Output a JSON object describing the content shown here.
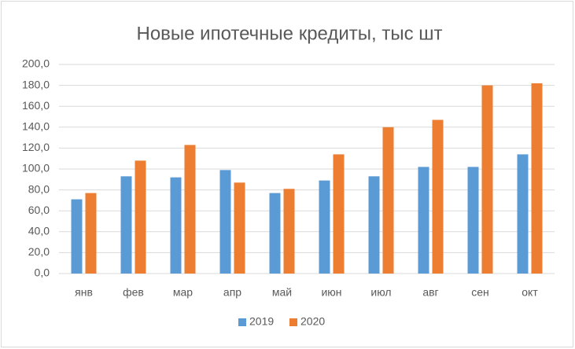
{
  "chart_data": {
    "type": "bar",
    "title": "Новые ипотечные кредиты, тыс шт",
    "categories": [
      "янв",
      "фев",
      "мар",
      "апр",
      "май",
      "июн",
      "июл",
      "авг",
      "сен",
      "окт"
    ],
    "series": [
      {
        "name": "2019",
        "color": "#5b9bd5",
        "values": [
          71,
          93,
          92,
          99,
          77,
          89,
          93,
          102,
          102,
          114
        ]
      },
      {
        "name": "2020",
        "color": "#ed7d31",
        "values": [
          77,
          108,
          123,
          87,
          81,
          114,
          140,
          147,
          180,
          182
        ]
      }
    ],
    "ylim": [
      0,
      200
    ],
    "yticks": [
      {
        "value": 0,
        "label": "0,0"
      },
      {
        "value": 20,
        "label": "20,0"
      },
      {
        "value": 40,
        "label": "40,0"
      },
      {
        "value": 60,
        "label": "60,0"
      },
      {
        "value": 80,
        "label": "80,0"
      },
      {
        "value": 100,
        "label": "100,0"
      },
      {
        "value": 120,
        "label": "120,0"
      },
      {
        "value": 140,
        "label": "140,0"
      },
      {
        "value": 160,
        "label": "160,0"
      },
      {
        "value": 180,
        "label": "180,0"
      },
      {
        "value": 200,
        "label": "200,0"
      }
    ],
    "grid": true,
    "legend": "bottom"
  }
}
